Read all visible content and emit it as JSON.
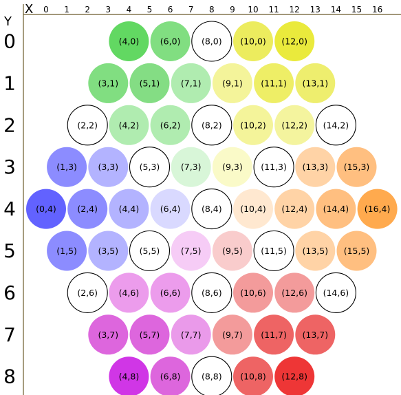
{
  "axes": {
    "x_letter": "X",
    "y_letter": "Y",
    "x_ticks": [
      "0",
      "1",
      "2",
      "3",
      "4",
      "5",
      "6",
      "7",
      "8",
      "9",
      "10",
      "11",
      "12",
      "13",
      "14",
      "15",
      "16"
    ],
    "y_ticks": [
      "0",
      "1",
      "2",
      "3",
      "4",
      "5",
      "6",
      "7",
      "8"
    ]
  },
  "cells": [
    {
      "x": 4,
      "y": 0,
      "label": "(4,0)",
      "color": "#62d862"
    },
    {
      "x": 6,
      "y": 0,
      "label": "(6,0)",
      "color": "#81de81"
    },
    {
      "x": 8,
      "y": 0,
      "label": "(8,0)",
      "color": "#ffffff"
    },
    {
      "x": 10,
      "y": 0,
      "label": "(10,0)",
      "color": "#ecec5e"
    },
    {
      "x": 12,
      "y": 0,
      "label": "(12,0)",
      "color": "#eaea3c"
    },
    {
      "x": 3,
      "y": 1,
      "label": "(3,1)",
      "color": "#81de81"
    },
    {
      "x": 5,
      "y": 1,
      "label": "(5,1)",
      "color": "#84dd84"
    },
    {
      "x": 7,
      "y": 1,
      "label": "(7,1)",
      "color": "#b0ecb0"
    },
    {
      "x": 9,
      "y": 1,
      "label": "(9,1)",
      "color": "#f4f49a"
    },
    {
      "x": 11,
      "y": 1,
      "label": "(11,1)",
      "color": "#eeee66"
    },
    {
      "x": 13,
      "y": 1,
      "label": "(13,1)",
      "color": "#eeee6e"
    },
    {
      "x": 2,
      "y": 2,
      "label": "(2,2)",
      "color": "#ffffff"
    },
    {
      "x": 4,
      "y": 2,
      "label": "(4,2)",
      "color": "#b0ecb0"
    },
    {
      "x": 6,
      "y": 2,
      "label": "(6,2)",
      "color": "#b0ecb0"
    },
    {
      "x": 8,
      "y": 2,
      "label": "(8,2)",
      "color": "#ffffff"
    },
    {
      "x": 10,
      "y": 2,
      "label": "(10,2)",
      "color": "#f4f49a"
    },
    {
      "x": 12,
      "y": 2,
      "label": "(12,2)",
      "color": "#f4f49e"
    },
    {
      "x": 14,
      "y": 2,
      "label": "(14,2)",
      "color": "#ffffff"
    },
    {
      "x": 1,
      "y": 3,
      "label": "(1,3)",
      "color": "#8c8cff"
    },
    {
      "x": 3,
      "y": 3,
      "label": "(3,3)",
      "color": "#b3b3ff"
    },
    {
      "x": 5,
      "y": 3,
      "label": "(5,3)",
      "color": "#ffffff"
    },
    {
      "x": 7,
      "y": 3,
      "label": "(7,3)",
      "color": "#d8f6d8"
    },
    {
      "x": 9,
      "y": 3,
      "label": "(9,3)",
      "color": "#fafac8"
    },
    {
      "x": 11,
      "y": 3,
      "label": "(11,3)",
      "color": "#ffffff"
    },
    {
      "x": 13,
      "y": 3,
      "label": "(13,3)",
      "color": "#ffd3a6"
    },
    {
      "x": 15,
      "y": 3,
      "label": "(15,3)",
      "color": "#ffbf80"
    },
    {
      "x": 0,
      "y": 4,
      "label": "(0,4)",
      "color": "#6262ff"
    },
    {
      "x": 2,
      "y": 4,
      "label": "(2,4)",
      "color": "#8c8cff"
    },
    {
      "x": 4,
      "y": 4,
      "label": "(4,4)",
      "color": "#b3b3ff"
    },
    {
      "x": 6,
      "y": 4,
      "label": "(6,4)",
      "color": "#d9d9ff"
    },
    {
      "x": 8,
      "y": 4,
      "label": "(8,4)",
      "color": "#ffffff"
    },
    {
      "x": 10,
      "y": 4,
      "label": "(10,4)",
      "color": "#ffe8d0"
    },
    {
      "x": 12,
      "y": 4,
      "label": "(12,4)",
      "color": "#ffd3a6"
    },
    {
      "x": 14,
      "y": 4,
      "label": "(14,4)",
      "color": "#ffbf80"
    },
    {
      "x": 16,
      "y": 4,
      "label": "(16,4)",
      "color": "#ffaa4e"
    },
    {
      "x": 1,
      "y": 5,
      "label": "(1,5)",
      "color": "#8c8cff"
    },
    {
      "x": 3,
      "y": 5,
      "label": "(3,5)",
      "color": "#b3b3ff"
    },
    {
      "x": 5,
      "y": 5,
      "label": "(5,5)",
      "color": "#ffffff"
    },
    {
      "x": 7,
      "y": 5,
      "label": "(7,5)",
      "color": "#f6ccf6"
    },
    {
      "x": 9,
      "y": 5,
      "label": "(9,5)",
      "color": "#f9cccc"
    },
    {
      "x": 11,
      "y": 5,
      "label": "(11,5)",
      "color": "#ffffff"
    },
    {
      "x": 13,
      "y": 5,
      "label": "(13,5)",
      "color": "#ffd3a6"
    },
    {
      "x": 15,
      "y": 5,
      "label": "(15,5)",
      "color": "#ffbf80"
    },
    {
      "x": 2,
      "y": 6,
      "label": "(2,6)",
      "color": "#ffffff"
    },
    {
      "x": 4,
      "y": 6,
      "label": "(4,6)",
      "color": "#ec9cec"
    },
    {
      "x": 6,
      "y": 6,
      "label": "(6,6)",
      "color": "#ec9cec"
    },
    {
      "x": 8,
      "y": 6,
      "label": "(8,6)",
      "color": "#ffffff"
    },
    {
      "x": 10,
      "y": 6,
      "label": "(10,6)",
      "color": "#f39b9b"
    },
    {
      "x": 12,
      "y": 6,
      "label": "(12,6)",
      "color": "#f39b9b"
    },
    {
      "x": 14,
      "y": 6,
      "label": "(14,6)",
      "color": "#ffffff"
    },
    {
      "x": 3,
      "y": 7,
      "label": "(3,7)",
      "color": "#dd66dd"
    },
    {
      "x": 5,
      "y": 7,
      "label": "(5,7)",
      "color": "#dd66dd"
    },
    {
      "x": 7,
      "y": 7,
      "label": "(7,7)",
      "color": "#ea9aea"
    },
    {
      "x": 9,
      "y": 7,
      "label": "(9,7)",
      "color": "#f39b9b"
    },
    {
      "x": 11,
      "y": 7,
      "label": "(11,7)",
      "color": "#ee6464"
    },
    {
      "x": 13,
      "y": 7,
      "label": "(13,7)",
      "color": "#ee6464"
    },
    {
      "x": 4,
      "y": 8,
      "label": "(4,8)",
      "color": "#d036e6"
    },
    {
      "x": 6,
      "y": 8,
      "label": "(6,8)",
      "color": "#dd66dd"
    },
    {
      "x": 8,
      "y": 8,
      "label": "(8,8)",
      "color": "#ffffff"
    },
    {
      "x": 10,
      "y": 8,
      "label": "(10,8)",
      "color": "#ee6464"
    },
    {
      "x": 12,
      "y": 8,
      "label": "(12,8)",
      "color": "#ee3636"
    }
  ]
}
